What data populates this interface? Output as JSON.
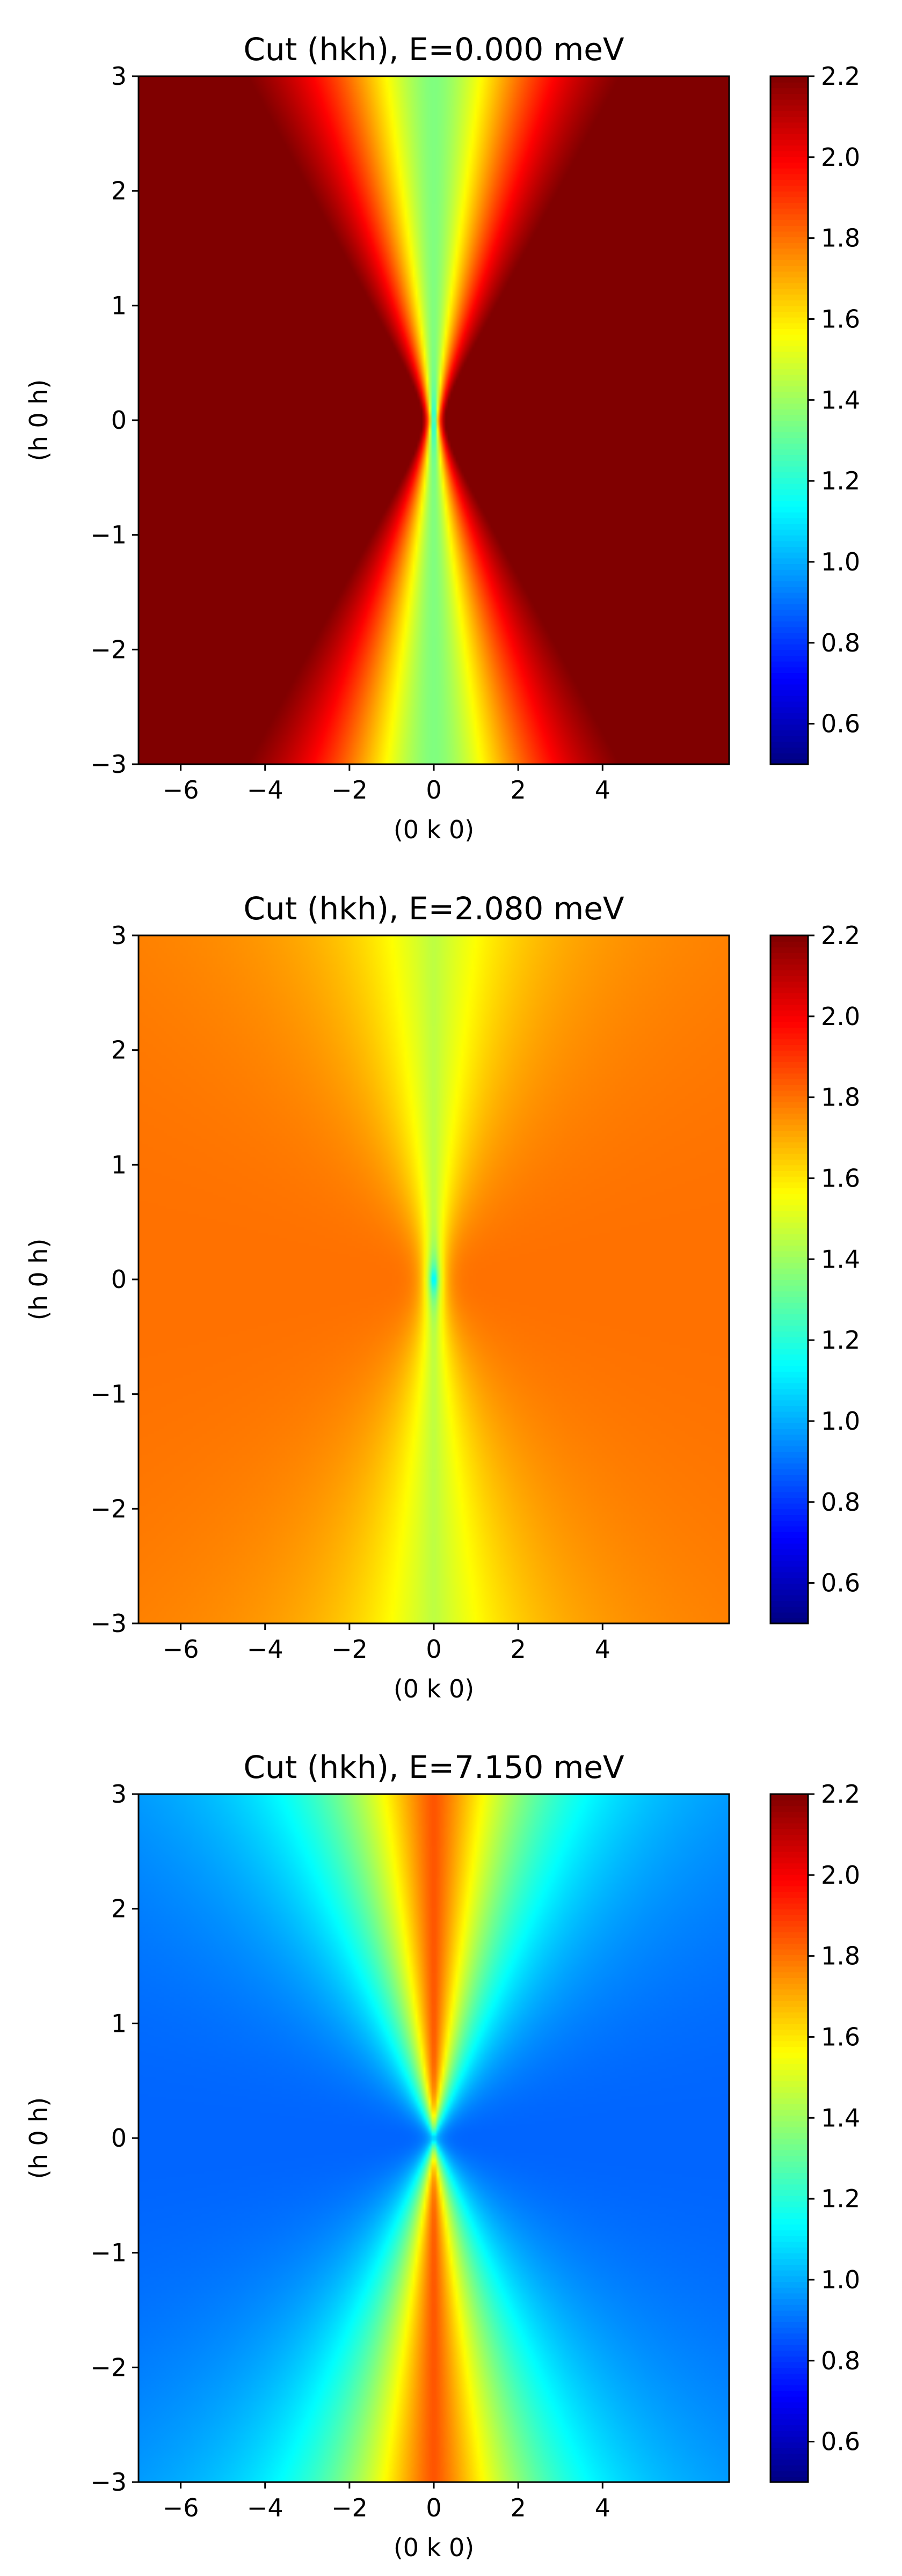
{
  "figure": {
    "colorbar": {
      "min": 0.5,
      "max": 2.2,
      "ticks": [
        "0.6",
        "0.8",
        "1.0",
        "1.2",
        "1.4",
        "1.6",
        "1.8",
        "2.0",
        "2.2"
      ],
      "colormap": "jet"
    }
  },
  "chart_data": [
    {
      "type": "heatmap",
      "title": "Cut (hkh), E=0.000 meV",
      "xlabel": "(0 k 0)",
      "ylabel": "(h 0 h)",
      "xlim": [
        -7,
        7
      ],
      "ylim": [
        -3,
        3
      ],
      "xticks": [
        "−6",
        "−4",
        "−2",
        "0",
        "2",
        "4"
      ],
      "yticks": [
        "−3",
        "−2",
        "−1",
        "0",
        "1",
        "2",
        "3"
      ],
      "field": {
        "along_y_axis": 1.35,
        "along_x_axis": 2.5,
        "at_origin": 1.0,
        "angular_exponent": 1.6
      },
      "colorbar_range": [
        0.5,
        2.2
      ]
    },
    {
      "type": "heatmap",
      "title": "Cut (hkh), E=2.080 meV",
      "xlabel": "(0 k 0)",
      "ylabel": "(h 0 h)",
      "xlim": [
        -7,
        7
      ],
      "ylim": [
        -3,
        3
      ],
      "xticks": [
        "−6",
        "−4",
        "−2",
        "0",
        "2",
        "4"
      ],
      "yticks": [
        "−3",
        "−2",
        "−1",
        "0",
        "1",
        "2",
        "3"
      ],
      "field": {
        "along_y_axis": 1.45,
        "along_x_axis": 1.8,
        "at_origin": 1.0,
        "angular_exponent": 1.0
      },
      "colorbar_range": [
        0.5,
        2.2
      ]
    },
    {
      "type": "heatmap",
      "title": "Cut (hkh), E=7.150 meV",
      "xlabel": "(0 k 0)",
      "ylabel": "(h 0 h)",
      "xlim": [
        -7,
        7
      ],
      "ylim": [
        -3,
        3
      ],
      "xticks": [
        "−6",
        "−4",
        "−2",
        "0",
        "2",
        "4"
      ],
      "yticks": [
        "−3",
        "−2",
        "−1",
        "0",
        "1",
        "2",
        "3"
      ],
      "field": {
        "along_y_axis": 1.85,
        "along_x_axis": 0.88,
        "at_origin": 1.1,
        "angular_exponent": 1.2
      },
      "colorbar_range": [
        0.5,
        2.2
      ]
    }
  ]
}
